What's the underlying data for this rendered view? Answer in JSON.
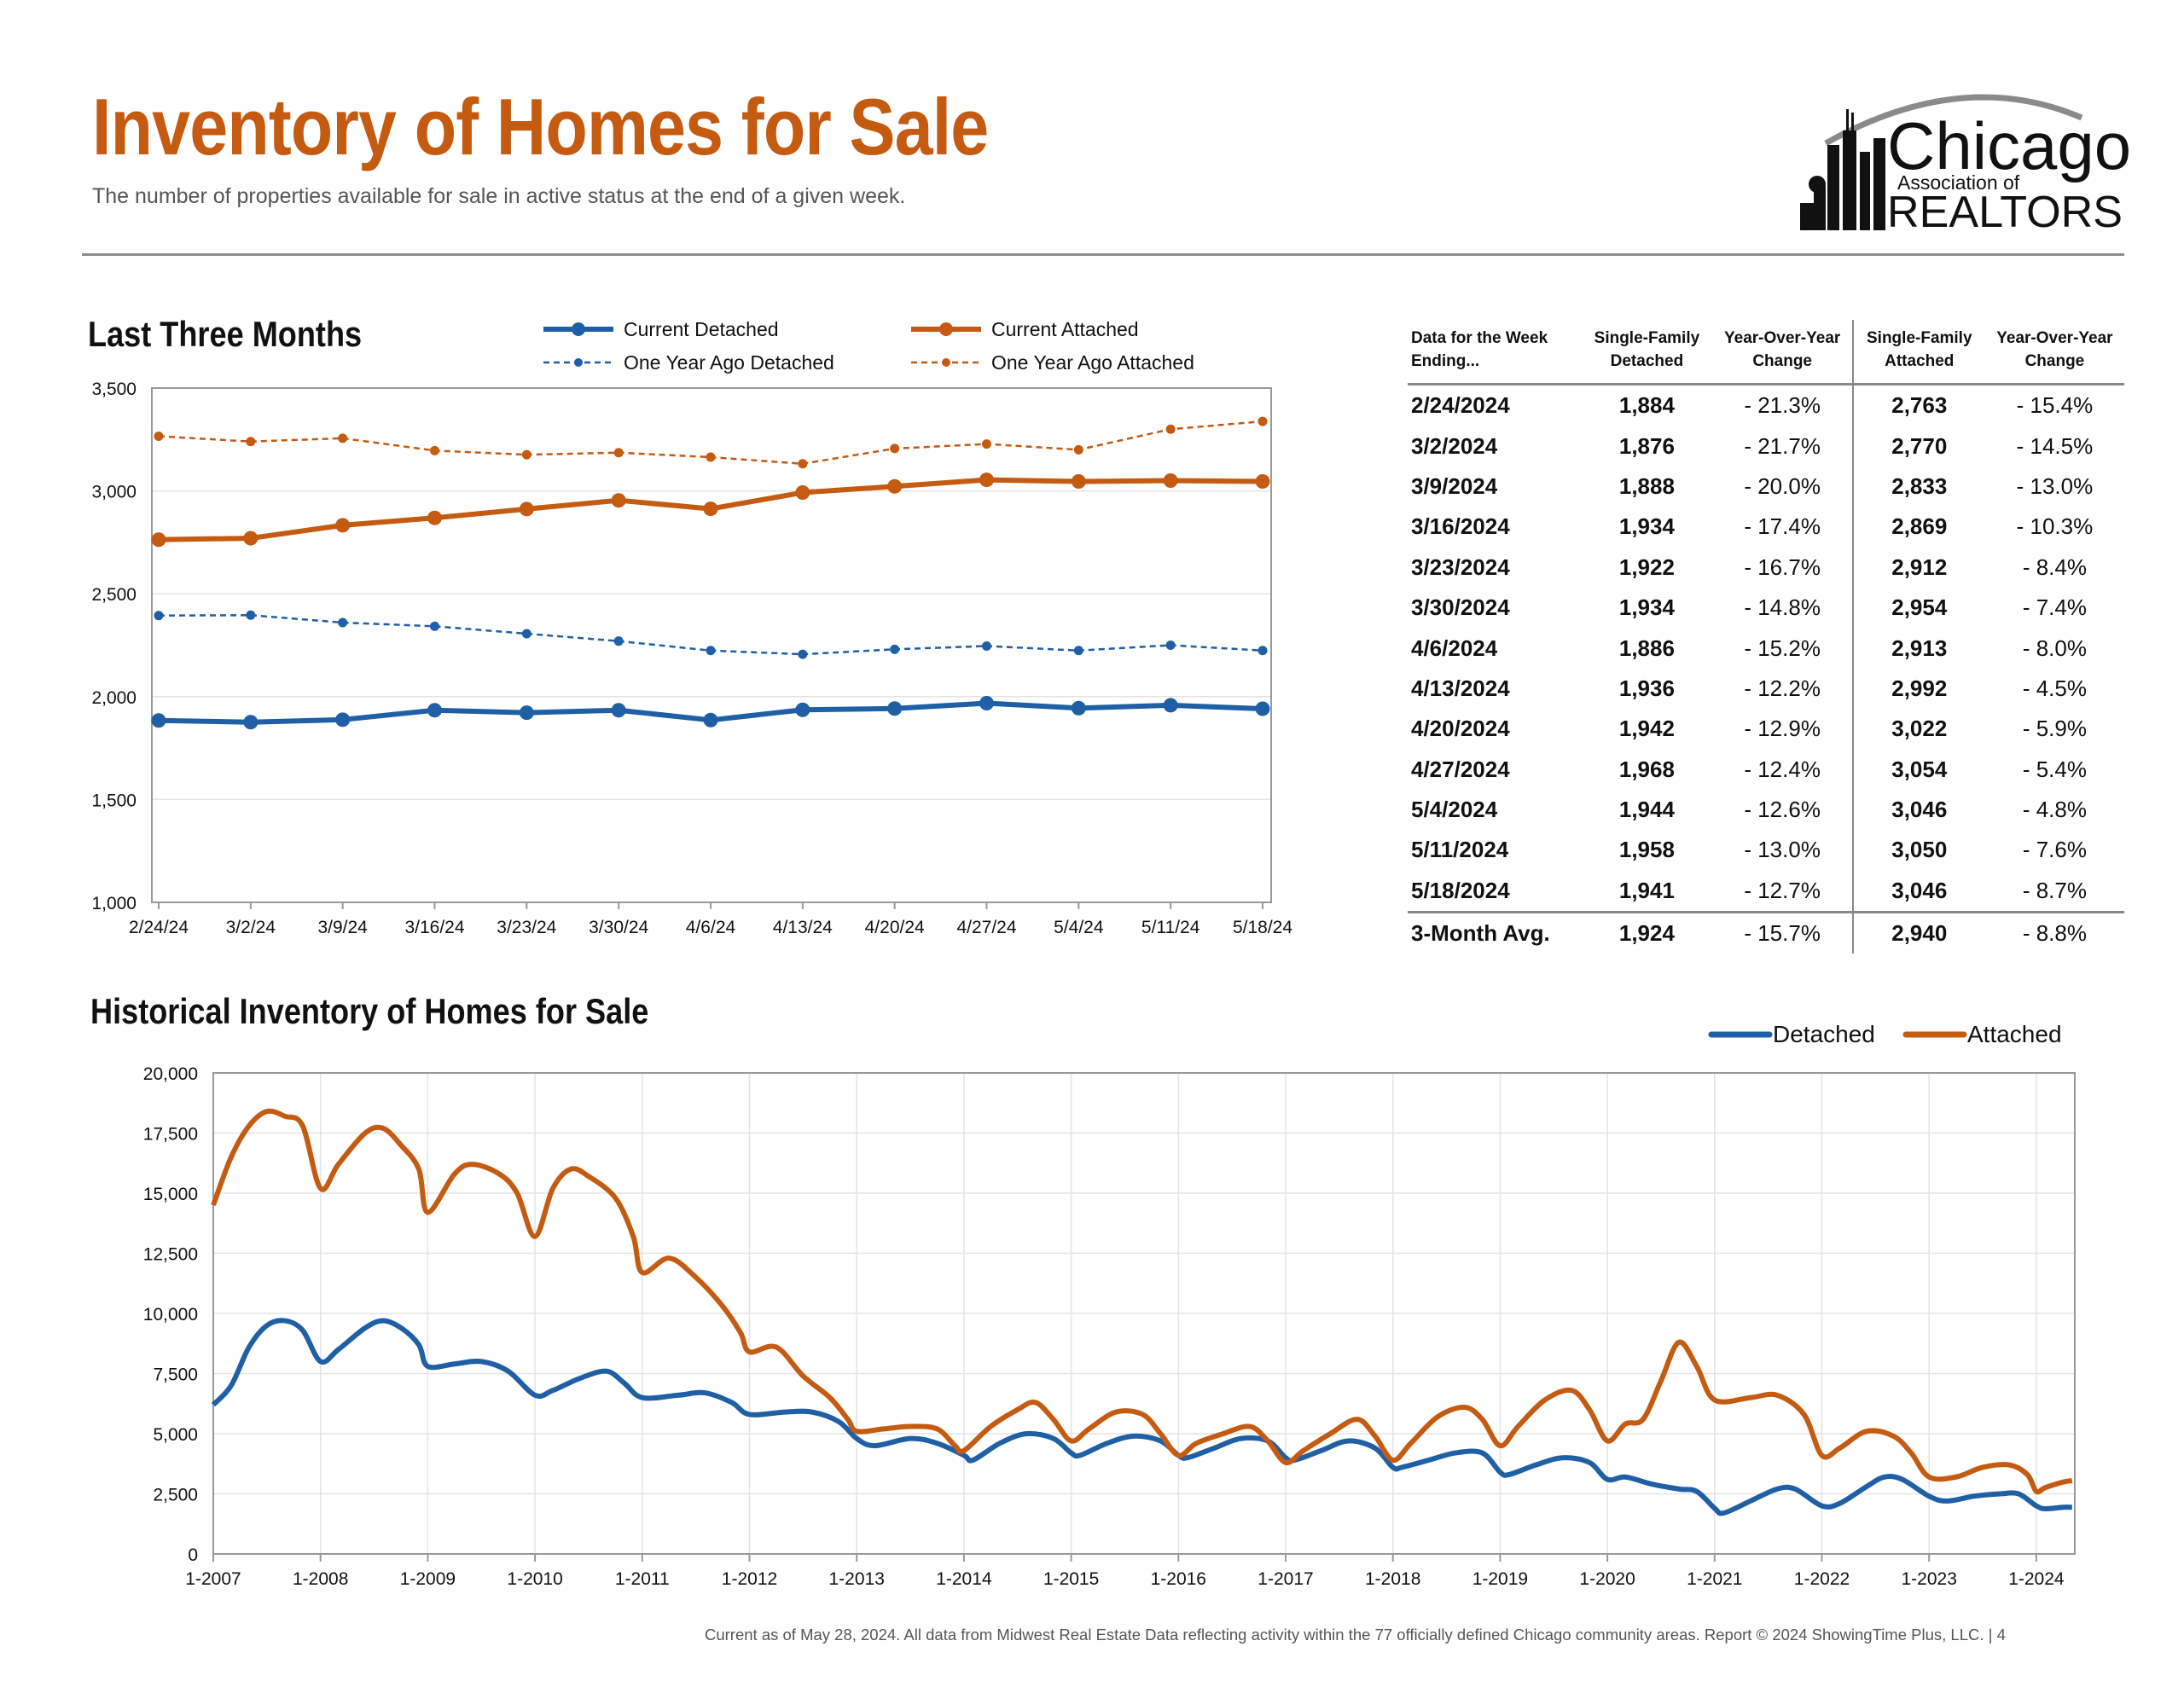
{
  "header": {
    "title": "Inventory of Homes for Sale",
    "subtitle": "The number of properties available for sale in active status at the end of a given week."
  },
  "logo": {
    "line1": "Chicago",
    "line2": "Association of",
    "line3": "REALTORS"
  },
  "colors": {
    "detached": "#1f5fa6",
    "attached": "#c55a11",
    "title": "#c55a11"
  },
  "recent_section": {
    "title": "Last Three Months",
    "legend": [
      "Current Detached",
      "Current Attached",
      "One Year Ago Detached",
      "One Year Ago Attached"
    ]
  },
  "historical_section": {
    "title": "Historical Inventory of Homes for Sale",
    "legend": [
      "Detached",
      "Attached"
    ]
  },
  "table": {
    "headers": {
      "week": "Data for the Week Ending...",
      "sf_detached": "Single-Family Detached",
      "yoy_detached": "Year-Over-Year Change",
      "sf_attached": "Single-Family Attached",
      "yoy_attached": "Year-Over-Year Change"
    },
    "rows": [
      {
        "week": "2/24/2024",
        "det": "1,884",
        "det_yoy": "- 21.3%",
        "att": "2,763",
        "att_yoy": "- 15.4%"
      },
      {
        "week": "3/2/2024",
        "det": "1,876",
        "det_yoy": "- 21.7%",
        "att": "2,770",
        "att_yoy": "- 14.5%"
      },
      {
        "week": "3/9/2024",
        "det": "1,888",
        "det_yoy": "- 20.0%",
        "att": "2,833",
        "att_yoy": "- 13.0%"
      },
      {
        "week": "3/16/2024",
        "det": "1,934",
        "det_yoy": "- 17.4%",
        "att": "2,869",
        "att_yoy": "- 10.3%"
      },
      {
        "week": "3/23/2024",
        "det": "1,922",
        "det_yoy": "- 16.7%",
        "att": "2,912",
        "att_yoy": "- 8.4%"
      },
      {
        "week": "3/30/2024",
        "det": "1,934",
        "det_yoy": "- 14.8%",
        "att": "2,954",
        "att_yoy": "- 7.4%"
      },
      {
        "week": "4/6/2024",
        "det": "1,886",
        "det_yoy": "- 15.2%",
        "att": "2,913",
        "att_yoy": "- 8.0%"
      },
      {
        "week": "4/13/2024",
        "det": "1,936",
        "det_yoy": "- 12.2%",
        "att": "2,992",
        "att_yoy": "- 4.5%"
      },
      {
        "week": "4/20/2024",
        "det": "1,942",
        "det_yoy": "- 12.9%",
        "att": "3,022",
        "att_yoy": "- 5.9%"
      },
      {
        "week": "4/27/2024",
        "det": "1,968",
        "det_yoy": "- 12.4%",
        "att": "3,054",
        "att_yoy": "- 5.4%"
      },
      {
        "week": "5/4/2024",
        "det": "1,944",
        "det_yoy": "- 12.6%",
        "att": "3,046",
        "att_yoy": "- 4.8%"
      },
      {
        "week": "5/11/2024",
        "det": "1,958",
        "det_yoy": "- 13.0%",
        "att": "3,050",
        "att_yoy": "- 7.6%"
      },
      {
        "week": "5/18/2024",
        "det": "1,941",
        "det_yoy": "- 12.7%",
        "att": "3,046",
        "att_yoy": "- 8.7%"
      }
    ],
    "avg": {
      "week": "3-Month Avg.",
      "det": "1,924",
      "det_yoy": "- 15.7%",
      "att": "2,940",
      "att_yoy": "- 8.8%"
    }
  },
  "footer": "Current as of May 28, 2024.  All data from Midwest Real Estate Data reflecting activity within the 77 officially defined Chicago community areas. Report © 2024 ShowingTime Plus, LLC.  |  4",
  "chart_data": [
    {
      "type": "line",
      "title": "Last Three Months",
      "categories": [
        "2/24/24",
        "3/2/24",
        "3/9/24",
        "3/16/24",
        "3/23/24",
        "3/30/24",
        "4/6/24",
        "4/13/24",
        "4/20/24",
        "4/27/24",
        "5/4/24",
        "5/11/24",
        "5/18/24"
      ],
      "ylim": [
        1000,
        3500
      ],
      "yticks": [
        "1,000",
        "1,500",
        "2,000",
        "2,500",
        "3,000",
        "3,500"
      ],
      "grid": true,
      "legend_position": "top",
      "series": [
        {
          "name": "Current Detached",
          "style": "solid",
          "color": "#1f5fa6",
          "values": [
            1884,
            1876,
            1888,
            1934,
            1922,
            1934,
            1886,
            1936,
            1942,
            1968,
            1944,
            1958,
            1941
          ]
        },
        {
          "name": "Current Attached",
          "style": "solid",
          "color": "#c55a11",
          "values": [
            2763,
            2770,
            2833,
            2869,
            2912,
            2954,
            2913,
            2992,
            3022,
            3054,
            3046,
            3050,
            3046
          ]
        },
        {
          "name": "One Year Ago Detached",
          "style": "dashed",
          "color": "#1f5fa6",
          "values": [
            2394,
            2396,
            2360,
            2342,
            2306,
            2270,
            2224,
            2206,
            2230,
            2246,
            2224,
            2250,
            2224
          ]
        },
        {
          "name": "One Year Ago Attached",
          "style": "dashed",
          "color": "#c55a11",
          "values": [
            3266,
            3240,
            3256,
            3196,
            3176,
            3186,
            3164,
            3132,
            3206,
            3228,
            3200,
            3300,
            3338
          ]
        }
      ]
    },
    {
      "type": "line",
      "title": "Historical Inventory of Homes for Sale",
      "xlim": [
        "1-2007",
        "6-2024"
      ],
      "xticks": [
        "1-2007",
        "1-2008",
        "1-2009",
        "1-2010",
        "1-2011",
        "1-2012",
        "1-2013",
        "1-2014",
        "1-2015",
        "1-2016",
        "1-2017",
        "1-2018",
        "1-2019",
        "1-2020",
        "1-2021",
        "1-2022",
        "1-2023",
        "1-2024"
      ],
      "ylim": [
        0,
        20000
      ],
      "yticks": [
        "0",
        "2,500",
        "5,000",
        "7,500",
        "10,000",
        "12,500",
        "15,000",
        "17,500",
        "20,000"
      ],
      "grid": true,
      "legend_position": "top-right",
      "series": [
        {
          "name": "Detached",
          "color": "#1f5fa6",
          "points": [
            [
              "1-2007",
              6200
            ],
            [
              "3-2007",
              7000
            ],
            [
              "5-2007",
              8600
            ],
            [
              "7-2007",
              9500
            ],
            [
              "9-2007",
              9700
            ],
            [
              "11-2007",
              9300
            ],
            [
              "1-2008",
              8000
            ],
            [
              "3-2008",
              8500
            ],
            [
              "6-2008",
              9400
            ],
            [
              "8-2008",
              9700
            ],
            [
              "10-2008",
              9400
            ],
            [
              "12-2008",
              8700
            ],
            [
              "1-2009",
              7800
            ],
            [
              "4-2009",
              7900
            ],
            [
              "7-2009",
              8000
            ],
            [
              "10-2009",
              7600
            ],
            [
              "1-2010",
              6600
            ],
            [
              "3-2010",
              6800
            ],
            [
              "6-2010",
              7300
            ],
            [
              "9-2010",
              7600
            ],
            [
              "11-2010",
              7100
            ],
            [
              "1-2011",
              6500
            ],
            [
              "5-2011",
              6600
            ],
            [
              "8-2011",
              6700
            ],
            [
              "11-2011",
              6300
            ],
            [
              "1-2012",
              5800
            ],
            [
              "5-2012",
              5900
            ],
            [
              "8-2012",
              5900
            ],
            [
              "11-2012",
              5500
            ],
            [
              "1-2013",
              4800
            ],
            [
              "3-2013",
              4500
            ],
            [
              "7-2013",
              4800
            ],
            [
              "10-2013",
              4600
            ],
            [
              "1-2014",
              4100
            ],
            [
              "2-2014",
              3900
            ],
            [
              "5-2014",
              4600
            ],
            [
              "8-2014",
              5000
            ],
            [
              "11-2014",
              4800
            ],
            [
              "1-2015",
              4200
            ],
            [
              "2-2015",
              4100
            ],
            [
              "5-2015",
              4600
            ],
            [
              "8-2015",
              4900
            ],
            [
              "11-2015",
              4700
            ],
            [
              "1-2016",
              4100
            ],
            [
              "2-2016",
              4000
            ],
            [
              "5-2016",
              4400
            ],
            [
              "8-2016",
              4800
            ],
            [
              "11-2016",
              4700
            ],
            [
              "1-2017",
              4000
            ],
            [
              "2-2017",
              3900
            ],
            [
              "5-2017",
              4300
            ],
            [
              "8-2017",
              4700
            ],
            [
              "11-2017",
              4400
            ],
            [
              "1-2018",
              3600
            ],
            [
              "2-2018",
              3600
            ],
            [
              "5-2018",
              3900
            ],
            [
              "8-2018",
              4200
            ],
            [
              "11-2018",
              4200
            ],
            [
              "1-2019",
              3400
            ],
            [
              "2-2019",
              3300
            ],
            [
              "5-2019",
              3700
            ],
            [
              "8-2019",
              4000
            ],
            [
              "11-2019",
              3800
            ],
            [
              "1-2020",
              3100
            ],
            [
              "3-2020",
              3200
            ],
            [
              "6-2020",
              2900
            ],
            [
              "9-2020",
              2700
            ],
            [
              "11-2020",
              2600
            ],
            [
              "1-2021",
              1900
            ],
            [
              "2-2021",
              1700
            ],
            [
              "5-2021",
              2200
            ],
            [
              "8-2021",
              2700
            ],
            [
              "10-2021",
              2700
            ],
            [
              "1-2022",
              2000
            ],
            [
              "3-2022",
              2100
            ],
            [
              "6-2022",
              2800
            ],
            [
              "8-2022",
              3200
            ],
            [
              "10-2022",
              3100
            ],
            [
              "1-2023",
              2400
            ],
            [
              "3-2023",
              2200
            ],
            [
              "6-2023",
              2400
            ],
            [
              "9-2023",
              2500
            ],
            [
              "11-2023",
              2500
            ],
            [
              "1-2024",
              2000
            ],
            [
              "2-2024",
              1880
            ],
            [
              "4-2024",
              1940
            ],
            [
              "5-2024",
              1940
            ]
          ]
        },
        {
          "name": "Attached",
          "color": "#c55a11",
          "points": [
            [
              "1-2007",
              14500
            ],
            [
              "3-2007",
              16500
            ],
            [
              "5-2007",
              17800
            ],
            [
              "7-2007",
              18400
            ],
            [
              "9-2007",
              18200
            ],
            [
              "11-2007",
              17800
            ],
            [
              "1-2008",
              15200
            ],
            [
              "3-2008",
              16200
            ],
            [
              "6-2008",
              17500
            ],
            [
              "8-2008",
              17700
            ],
            [
              "10-2008",
              17000
            ],
            [
              "12-2008",
              16000
            ],
            [
              "1-2009",
              14200
            ],
            [
              "4-2009",
              15800
            ],
            [
              "6-2009",
              16200
            ],
            [
              "9-2009",
              15800
            ],
            [
              "11-2009",
              15000
            ],
            [
              "1-2010",
              13200
            ],
            [
              "3-2010",
              15200
            ],
            [
              "5-2010",
              16000
            ],
            [
              "7-2010",
              15700
            ],
            [
              "10-2010",
              14800
            ],
            [
              "12-2010",
              13200
            ],
            [
              "1-2011",
              11700
            ],
            [
              "4-2011",
              12300
            ],
            [
              "7-2011",
              11500
            ],
            [
              "10-2011",
              10300
            ],
            [
              "12-2011",
              9200
            ],
            [
              "1-2012",
              8400
            ],
            [
              "4-2012",
              8600
            ],
            [
              "7-2012",
              7400
            ],
            [
              "10-2012",
              6500
            ],
            [
              "12-2012",
              5600
            ],
            [
              "1-2013",
              5100
            ],
            [
              "4-2013",
              5200
            ],
            [
              "7-2013",
              5300
            ],
            [
              "10-2013",
              5200
            ],
            [
              "12-2013",
              4500
            ],
            [
              "1-2014",
              4300
            ],
            [
              "4-2014",
              5300
            ],
            [
              "7-2014",
              6000
            ],
            [
              "9-2014",
              6300
            ],
            [
              "11-2014",
              5600
            ],
            [
              "1-2015",
              4700
            ],
            [
              "3-2015",
              5200
            ],
            [
              "6-2015",
              5900
            ],
            [
              "9-2015",
              5800
            ],
            [
              "11-2015",
              5000
            ],
            [
              "1-2016",
              4100
            ],
            [
              "3-2016",
              4600
            ],
            [
              "6-2016",
              5000
            ],
            [
              "9-2016",
              5300
            ],
            [
              "11-2016",
              4700
            ],
            [
              "1-2017",
              3800
            ],
            [
              "3-2017",
              4300
            ],
            [
              "6-2017",
              5000
            ],
            [
              "9-2017",
              5600
            ],
            [
              "11-2017",
              4900
            ],
            [
              "1-2018",
              3900
            ],
            [
              "3-2018",
              4600
            ],
            [
              "6-2018",
              5700
            ],
            [
              "9-2018",
              6100
            ],
            [
              "11-2018",
              5600
            ],
            [
              "1-2019",
              4500
            ],
            [
              "3-2019",
              5300
            ],
            [
              "6-2019",
              6400
            ],
            [
              "9-2019",
              6800
            ],
            [
              "11-2019",
              6000
            ],
            [
              "1-2020",
              4700
            ],
            [
              "3-2020",
              5400
            ],
            [
              "5-2020",
              5600
            ],
            [
              "7-2020",
              7200
            ],
            [
              "9-2020",
              8800
            ],
            [
              "11-2020",
              7800
            ],
            [
              "1-2021",
              6400
            ],
            [
              "5-2021",
              6500
            ],
            [
              "8-2021",
              6600
            ],
            [
              "11-2021",
              5800
            ],
            [
              "1-2022",
              4100
            ],
            [
              "3-2022",
              4400
            ],
            [
              "6-2022",
              5100
            ],
            [
              "9-2022",
              4900
            ],
            [
              "11-2022",
              4200
            ],
            [
              "1-2023",
              3200
            ],
            [
              "4-2023",
              3200
            ],
            [
              "7-2023",
              3600
            ],
            [
              "10-2023",
              3700
            ],
            [
              "12-2023",
              3300
            ],
            [
              "1-2024",
              2600
            ],
            [
              "2-2024",
              2760
            ],
            [
              "4-2024",
              2990
            ],
            [
              "5-2024",
              3046
            ]
          ]
        }
      ]
    }
  ]
}
